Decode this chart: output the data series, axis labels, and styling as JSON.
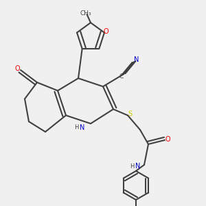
{
  "bg_color": "#f0f0f0",
  "bond_color": "#404040",
  "bond_width": 1.5,
  "atom_colors": {
    "O": "#ff0000",
    "N": "#0000cc",
    "S": "#cccc00",
    "C": "#404040",
    "H": "#404040"
  }
}
